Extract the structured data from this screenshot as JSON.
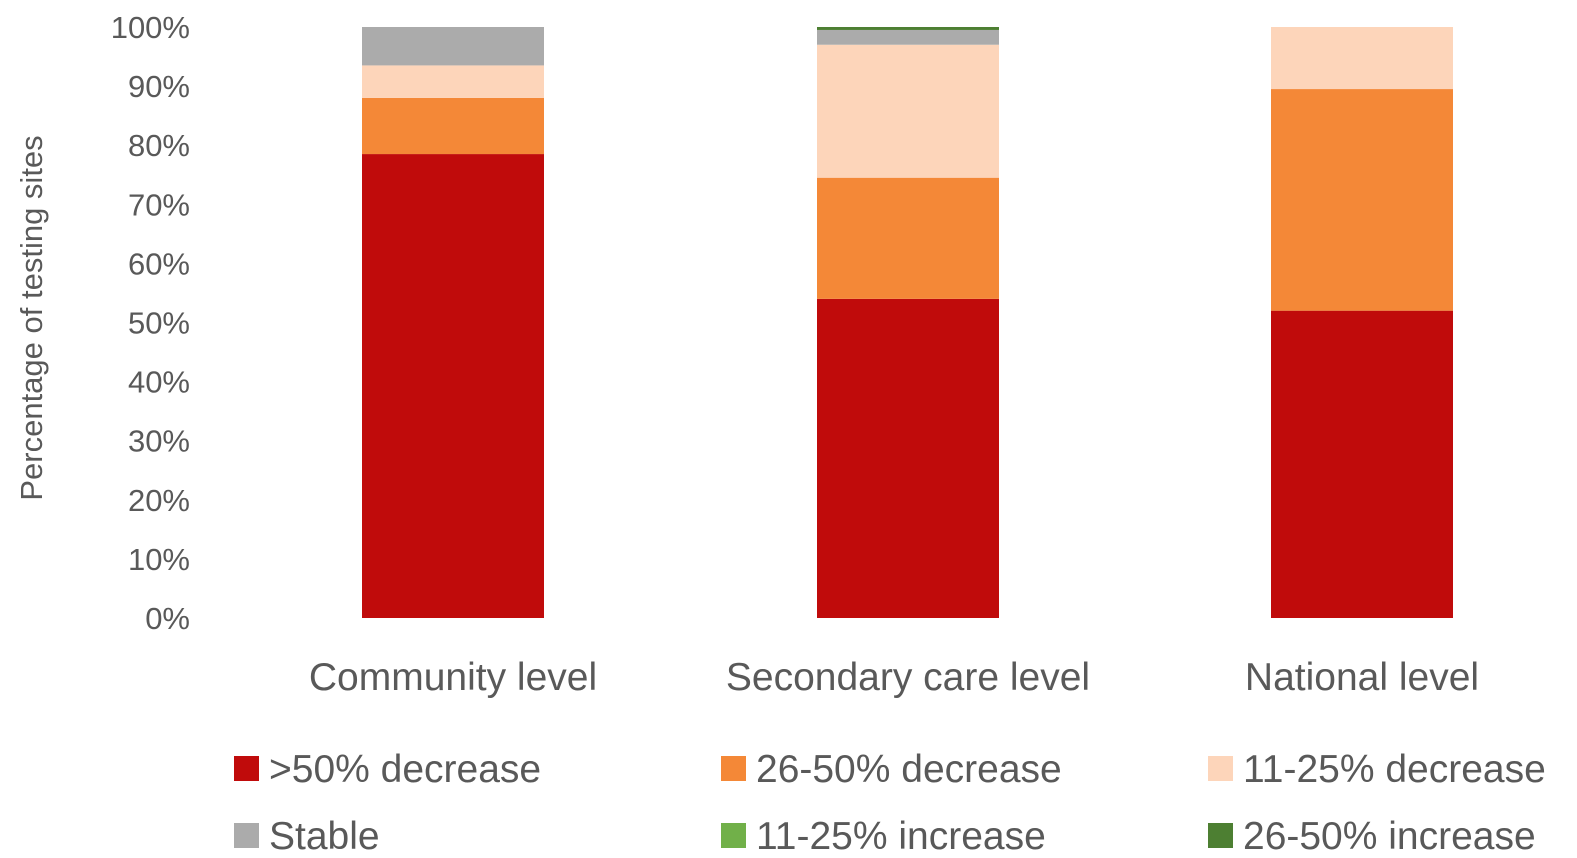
{
  "chart_data": {
    "type": "bar",
    "stacked": true,
    "title": "",
    "xlabel": "",
    "ylabel": "Percentage of testing sites",
    "ylim": [
      0,
      100
    ],
    "y_ticks": [
      "0%",
      "10%",
      "20%",
      "30%",
      "40%",
      "50%",
      "60%",
      "70%",
      "80%",
      "90%",
      "100%"
    ],
    "grid": false,
    "legend_position": "bottom",
    "categories": [
      "Community level",
      "Secondary care level",
      "National level"
    ],
    "series": [
      {
        "name": ">50% decrease",
        "color": "#C00B0B",
        "values": [
          78.5,
          54,
          52
        ]
      },
      {
        "name": "26-50% decrease",
        "color": "#F48837",
        "values": [
          9.5,
          20.5,
          37.5
        ]
      },
      {
        "name": "11-25% decrease",
        "color": "#FDD5BA",
        "values": [
          5.5,
          22.5,
          10.5
        ]
      },
      {
        "name": "Stable",
        "color": "#ABABAB",
        "values": [
          6.5,
          2.5,
          0
        ]
      },
      {
        "name": "11-25% increase",
        "color": "#71B049",
        "values": [
          0,
          0,
          0
        ]
      },
      {
        "name": "26-50% increase",
        "color": "#4D7F32",
        "values": [
          0,
          0.5,
          0
        ]
      }
    ]
  }
}
